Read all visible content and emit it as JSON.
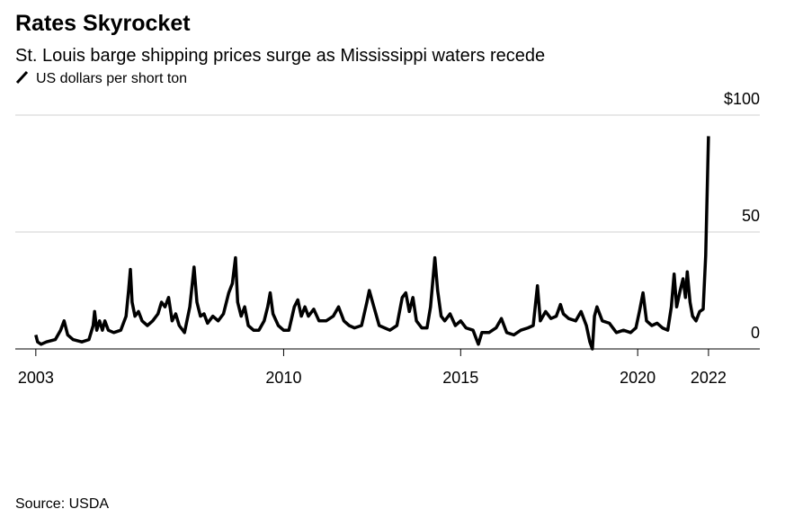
{
  "chart_data": {
    "type": "line",
    "title": "Rates Skyrocket",
    "subtitle": "St. Louis barge shipping prices surge as Mississippi waters recede",
    "source": "Source: USDA",
    "x": [
      2003.0,
      2003.05,
      2003.15,
      2003.3,
      2003.55,
      2003.7,
      2003.8,
      2003.9,
      2004.05,
      2004.3,
      2004.5,
      2004.62,
      2004.66,
      2004.72,
      2004.8,
      2004.88,
      2004.95,
      2005.05,
      2005.2,
      2005.4,
      2005.55,
      2005.62,
      2005.67,
      2005.72,
      2005.8,
      2005.9,
      2006.0,
      2006.15,
      2006.3,
      2006.45,
      2006.55,
      2006.65,
      2006.75,
      2006.85,
      2006.95,
      2007.05,
      2007.2,
      2007.35,
      2007.47,
      2007.55,
      2007.65,
      2007.75,
      2007.85,
      2008.0,
      2008.15,
      2008.3,
      2008.45,
      2008.55,
      2008.64,
      2008.7,
      2008.8,
      2008.9,
      2009.0,
      2009.15,
      2009.3,
      2009.45,
      2009.55,
      2009.62,
      2009.7,
      2009.85,
      2010.0,
      2010.15,
      2010.3,
      2010.4,
      2010.5,
      2010.6,
      2010.7,
      2010.85,
      2011.0,
      2011.2,
      2011.4,
      2011.55,
      2011.7,
      2011.85,
      2012.0,
      2012.2,
      2012.35,
      2012.42,
      2012.55,
      2012.7,
      2012.85,
      2013.0,
      2013.2,
      2013.35,
      2013.45,
      2013.55,
      2013.65,
      2013.75,
      2013.9,
      2014.05,
      2014.15,
      2014.27,
      2014.35,
      2014.45,
      2014.55,
      2014.7,
      2014.85,
      2015.0,
      2015.15,
      2015.35,
      2015.45,
      2015.5,
      2015.6,
      2015.8,
      2016.0,
      2016.15,
      2016.3,
      2016.5,
      2016.7,
      2016.9,
      2017.05,
      2017.17,
      2017.25,
      2017.4,
      2017.55,
      2017.7,
      2017.82,
      2017.9,
      2018.05,
      2018.25,
      2018.4,
      2018.55,
      2018.65,
      2018.72,
      2018.78,
      2018.85,
      2019.0,
      2019.2,
      2019.4,
      2019.6,
      2019.8,
      2019.95,
      2020.05,
      2020.15,
      2020.25,
      2020.4,
      2020.55,
      2020.7,
      2020.85,
      2020.95,
      2021.03,
      2021.1,
      2021.2,
      2021.28,
      2021.35,
      2021.4,
      2021.48,
      2021.55,
      2021.65,
      2021.75,
      2021.85,
      2021.92,
      2022.0
    ],
    "series": [
      {
        "name": "US dollars per short ton",
        "color": "#000000",
        "values": [
          6,
          3,
          2,
          3,
          4,
          8,
          12,
          6,
          4,
          3,
          4,
          10,
          16,
          8,
          12,
          8,
          12,
          8,
          7,
          8,
          14,
          25,
          34,
          20,
          14,
          16,
          12,
          10,
          12,
          15,
          20,
          18,
          22,
          12,
          15,
          10,
          7,
          18,
          35,
          20,
          14,
          15,
          11,
          14,
          12,
          15,
          24,
          28,
          39,
          20,
          14,
          18,
          10,
          8,
          8,
          12,
          18,
          24,
          15,
          10,
          8,
          8,
          18,
          21,
          14,
          18,
          14,
          17,
          12,
          12,
          14,
          18,
          12,
          10,
          9,
          10,
          20,
          25,
          18,
          10,
          9,
          8,
          10,
          22,
          24,
          16,
          22,
          12,
          9,
          9,
          18,
          39,
          25,
          14,
          12,
          15,
          10,
          12,
          9,
          8,
          4,
          2,
          7,
          7,
          9,
          13,
          7,
          6,
          8,
          9,
          10,
          27,
          12,
          16,
          13,
          14,
          19,
          15,
          13,
          12,
          16,
          10,
          3,
          0,
          14,
          18,
          12,
          11,
          7,
          8,
          7,
          9,
          16,
          24,
          12,
          10,
          11,
          9,
          8,
          18,
          32,
          18,
          25,
          30,
          22,
          33,
          20,
          14,
          12,
          16,
          17,
          40,
          91
        ]
      }
    ],
    "xlim": [
      2002.42,
      2023.45
    ],
    "xticks": [
      2003,
      2010,
      2015,
      2020,
      2022
    ],
    "ylim": [
      0,
      100
    ],
    "yticks": [
      0,
      50,
      {
        "value": 100,
        "label": "$100"
      }
    ],
    "grid": true
  }
}
